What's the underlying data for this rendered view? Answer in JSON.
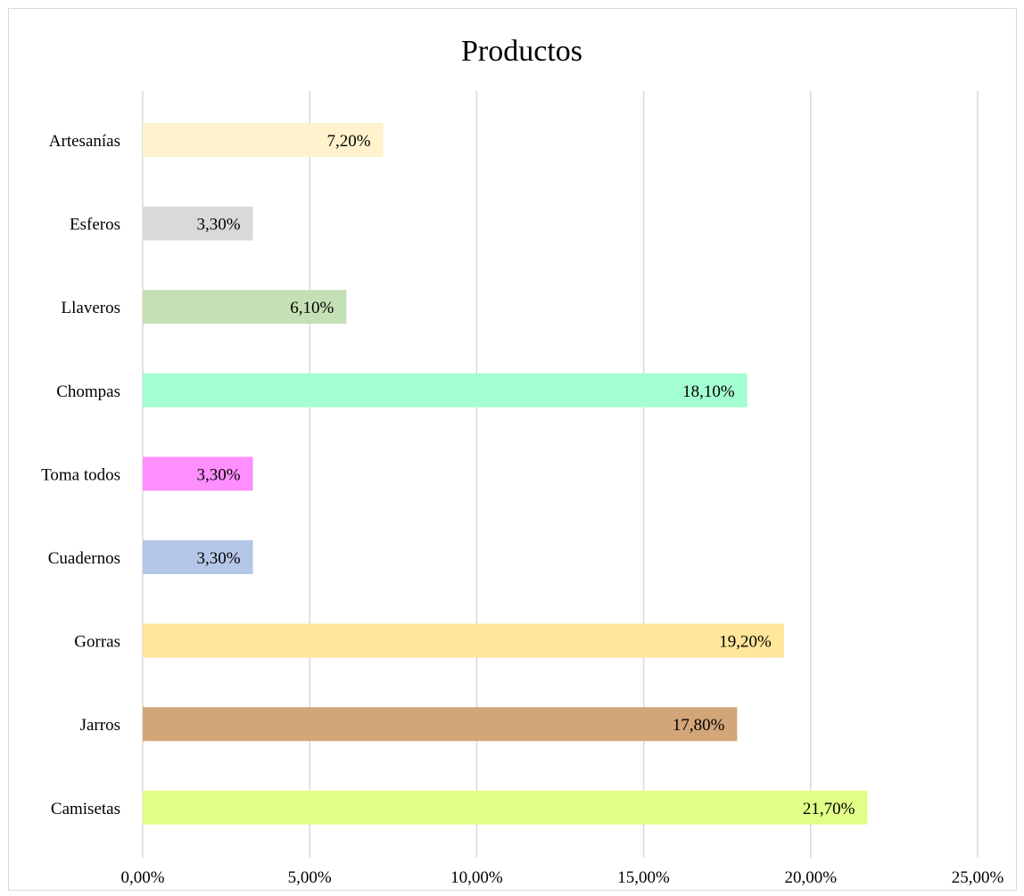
{
  "chart_data": {
    "type": "bar",
    "orientation": "horizontal",
    "title": "Productos",
    "xlabel": "",
    "ylabel": "",
    "categories": [
      "Artesanías",
      "Esferos",
      "Llaveros",
      "Chompas",
      "Toma todos",
      "Cuadernos",
      "Gorras",
      "Jarros",
      "Camisetas"
    ],
    "values": [
      7.2,
      3.3,
      6.1,
      18.1,
      3.3,
      3.3,
      19.2,
      17.8,
      21.7
    ],
    "data_labels": [
      "7,20%",
      "3,30%",
      "6,10%",
      "18,10%",
      "3,30%",
      "3,30%",
      "19,20%",
      "17,80%",
      "21,70%"
    ],
    "colors": [
      "#fff2cc",
      "#d9d9d9",
      "#c5e0b4",
      "#a3ffd0",
      "#ff8fff",
      "#b4c7e7",
      "#ffe699",
      "#d2a679",
      "#e1ff88"
    ],
    "xlim": [
      0,
      25
    ],
    "x_ticks": [
      0,
      5,
      10,
      15,
      20,
      25
    ],
    "x_tick_labels": [
      "0,00%",
      "5,00%",
      "10,00%",
      "15,00%",
      "20,00%",
      "25,00%"
    ],
    "grid": true,
    "legend": "none"
  }
}
